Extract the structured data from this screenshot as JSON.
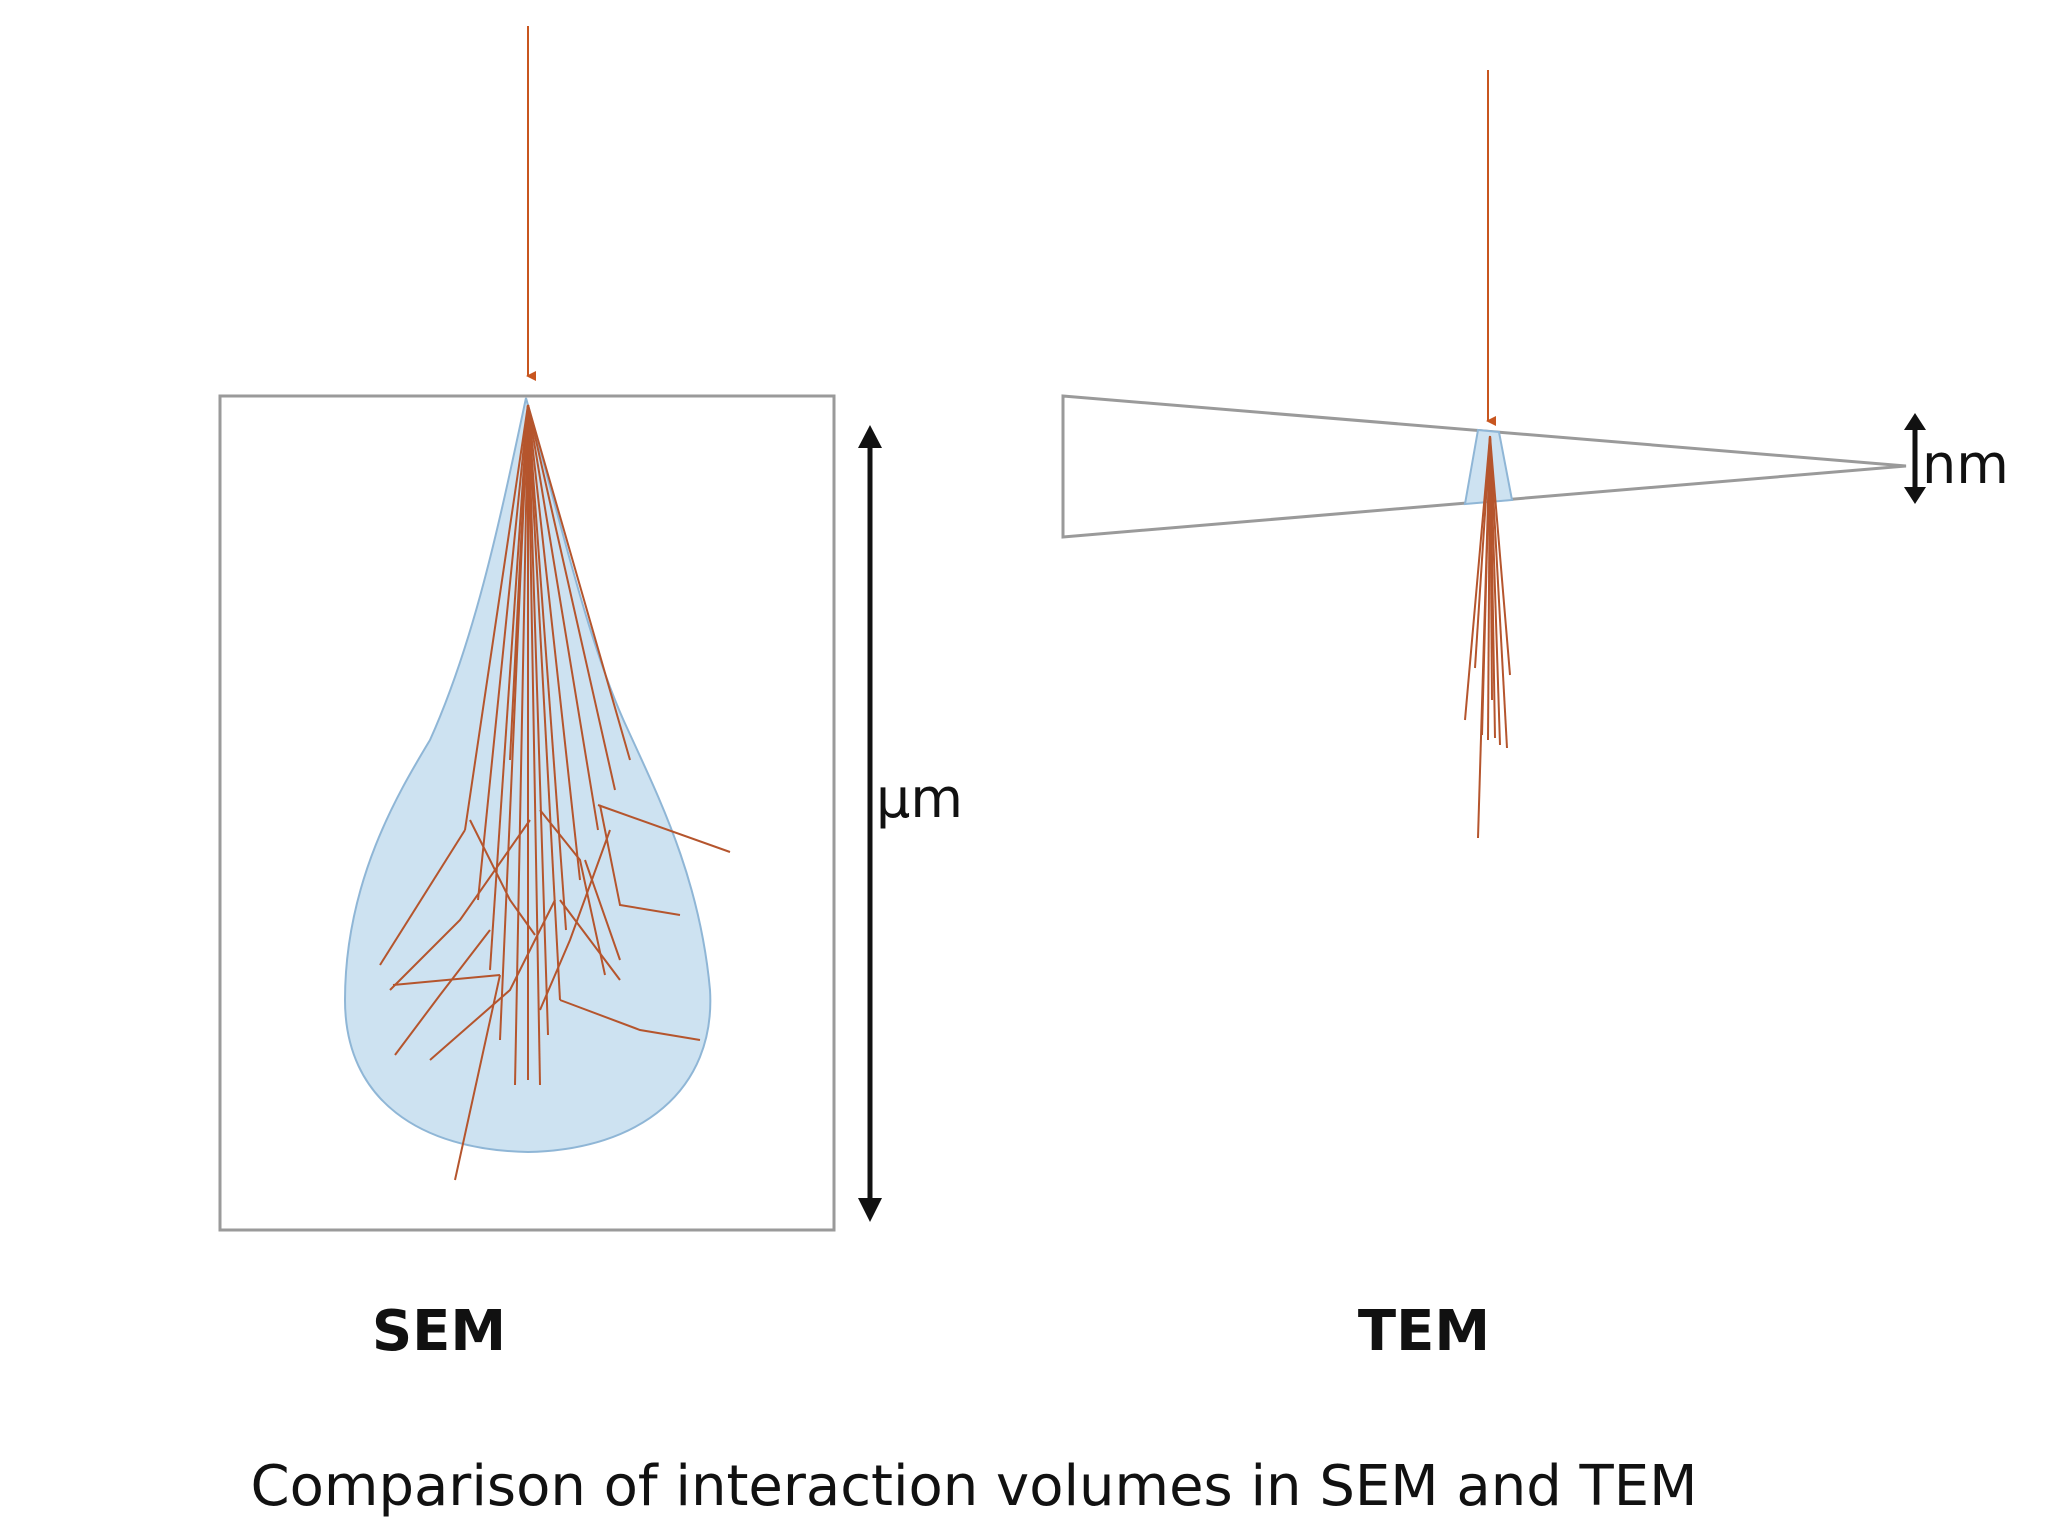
{
  "sem": {
    "label": "SEM",
    "scale_label": "µm"
  },
  "tem": {
    "label": "TEM",
    "scale_label": "nm"
  },
  "caption": "Comparison of interaction volumes in SEM and TEM",
  "colors": {
    "beam": "#c8561f",
    "trajectory": "#b5552d",
    "interaction_volume": "#cde2f1",
    "volume_outline": "#8fb6d6",
    "sample_outline": "#9a9a9a",
    "text": "#111111"
  }
}
